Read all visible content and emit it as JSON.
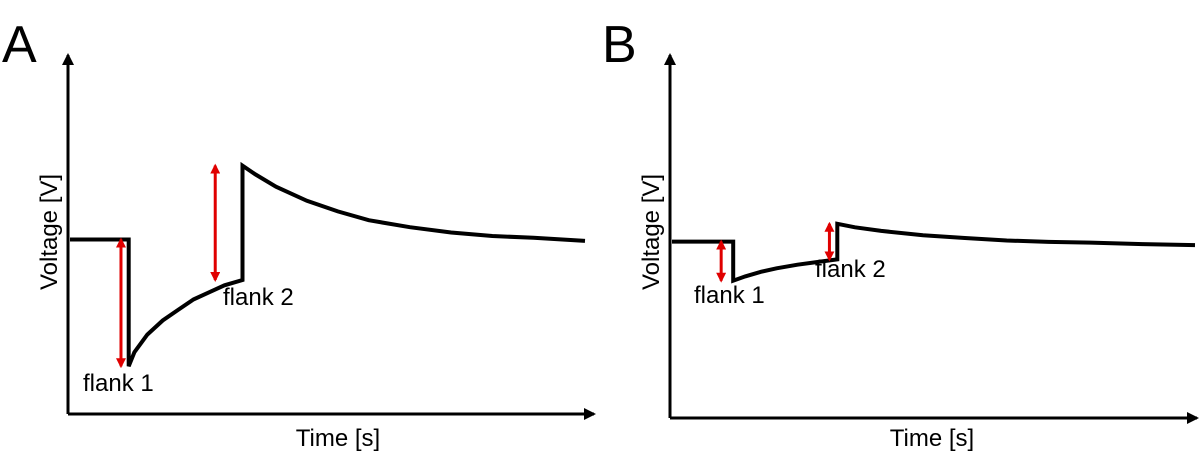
{
  "chart_data": [
    {
      "type": "line",
      "panel_label": "A",
      "xlabel": "Time [s]",
      "ylabel": "Voltage [V]",
      "xlim": [
        0,
        100
      ],
      "ylim": [
        0,
        100
      ],
      "axis_ticks": false,
      "series": [
        {
          "points": [
            [
              0,
              49
            ],
            [
              11.4,
              49
            ],
            [
              11.4,
              13
            ],
            [
              12.5,
              17
            ],
            [
              15,
              22
            ],
            [
              18,
              26
            ],
            [
              21,
              29
            ],
            [
              24,
              32
            ],
            [
              27,
              34
            ],
            [
              30,
              36
            ],
            [
              33.5,
              37.5
            ],
            [
              33.5,
              70
            ],
            [
              36,
              67.5
            ],
            [
              40,
              64
            ],
            [
              46,
              60
            ],
            [
              52,
              57
            ],
            [
              58,
              54.5
            ],
            [
              66,
              52.5
            ],
            [
              74,
              51
            ],
            [
              82,
              50
            ],
            [
              90,
              49.5
            ],
            [
              100,
              48.6
            ]
          ]
        }
      ],
      "flank_arrows": [
        {
          "label": "flank 1",
          "x": 9.9,
          "from": 49,
          "to": 13
        },
        {
          "label": "flank 2",
          "x": 28.2,
          "from": 37.5,
          "to": 70
        }
      ]
    },
    {
      "type": "line",
      "panel_label": "B",
      "xlabel": "Time [s]",
      "ylabel": "Voltage [V]",
      "xlim": [
        0,
        100
      ],
      "ylim": [
        0,
        100
      ],
      "axis_ticks": false,
      "series": [
        {
          "points": [
            [
              0,
              49
            ],
            [
              11.7,
              49
            ],
            [
              11.7,
              38
            ],
            [
              14,
              39.2
            ],
            [
              17,
              40.5
            ],
            [
              20,
              41.5
            ],
            [
              24,
              42.5
            ],
            [
              28,
              43.3
            ],
            [
              31.6,
              44
            ],
            [
              31.6,
              54
            ],
            [
              35,
              53
            ],
            [
              40,
              52
            ],
            [
              48,
              50.8
            ],
            [
              56,
              50
            ],
            [
              64,
              49.3
            ],
            [
              72,
              48.9
            ],
            [
              80,
              48.7
            ],
            [
              90,
              48.3
            ],
            [
              100,
              48
            ]
          ]
        }
      ],
      "flank_arrows": [
        {
          "label": "flank 1",
          "x": 9.4,
          "from": 49,
          "to": 38
        },
        {
          "label": "flank 2",
          "x": 30.1,
          "from": 44,
          "to": 54
        }
      ]
    }
  ]
}
